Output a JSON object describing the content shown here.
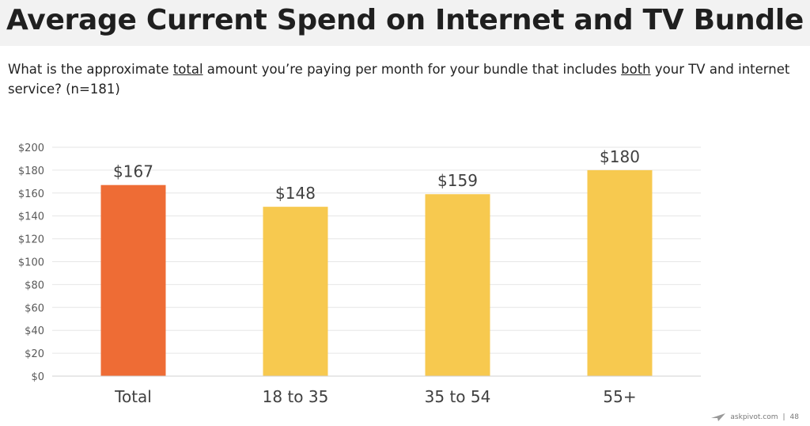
{
  "header": {
    "title": "Average Current Spend on Internet and TV Bundle"
  },
  "question": {
    "part1": "What is the approximate ",
    "u1": "total",
    "part2": " amount you’re paying per month for your bundle that includes ",
    "u2": "both",
    "part3": " your TV and internet service? (n=181)"
  },
  "chart_data": {
    "type": "bar",
    "categories": [
      "Total",
      "18 to 35",
      "35 to 54",
      "55+"
    ],
    "values": [
      167,
      148,
      159,
      180
    ],
    "value_labels": [
      "$167",
      "$148",
      "$159",
      "$180"
    ],
    "bar_colors": [
      "#ee6c35",
      "#f7c94f",
      "#f7c94f",
      "#f7c94f"
    ],
    "ylim": [
      0,
      200
    ],
    "yticks": [
      0,
      20,
      40,
      60,
      80,
      100,
      120,
      140,
      160,
      180,
      200
    ],
    "ytick_labels": [
      "$0",
      "$20",
      "$40",
      "$60",
      "$80",
      "$100",
      "$120",
      "$140",
      "$160",
      "$180",
      "$200"
    ],
    "grid": true,
    "gridline_color": "#e6e6e6"
  },
  "footer": {
    "site": "askpivot.com",
    "separator": "|",
    "page_number": "48",
    "logo_icon": "paper-plane-icon"
  }
}
